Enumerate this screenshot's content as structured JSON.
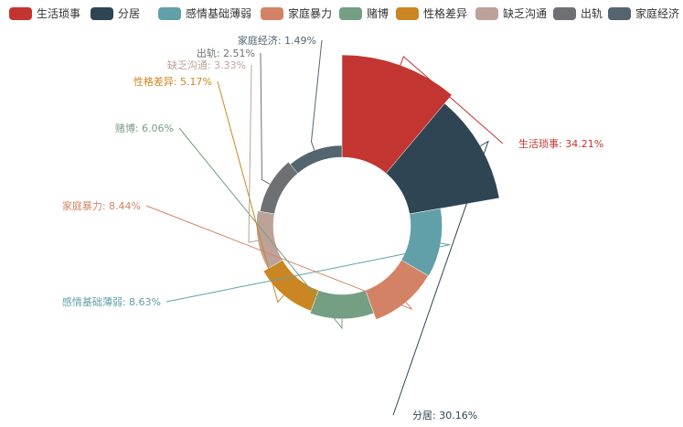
{
  "chart_data": {
    "type": "pie",
    "variant": "rose-donut",
    "title": "",
    "legend_position": "top",
    "categories": [
      "生活琐事",
      "分居",
      "感情基础薄弱",
      "家庭暴力",
      "赌博",
      "性格差异",
      "缺乏沟通",
      "出轨",
      "家庭经济"
    ],
    "values": [
      34.21,
      30.16,
      8.63,
      8.44,
      6.06,
      5.17,
      3.33,
      2.51,
      1.49
    ],
    "labels": [
      "生活琐事: 34.21%",
      "分居: 30.16%",
      "感情基础薄弱: 8.63%",
      "家庭暴力: 8.44%",
      "赌博: 6.06%",
      "性格差异: 5.17%",
      "缺乏沟通: 3.33%",
      "出轨: 2.51%",
      "家庭经济: 1.49%"
    ],
    "colors": [
      "#c23531",
      "#2f4554",
      "#61a0a8",
      "#d48265",
      "#749f83",
      "#ca8622",
      "#bda29a",
      "#6e7074",
      "#546570"
    ]
  }
}
